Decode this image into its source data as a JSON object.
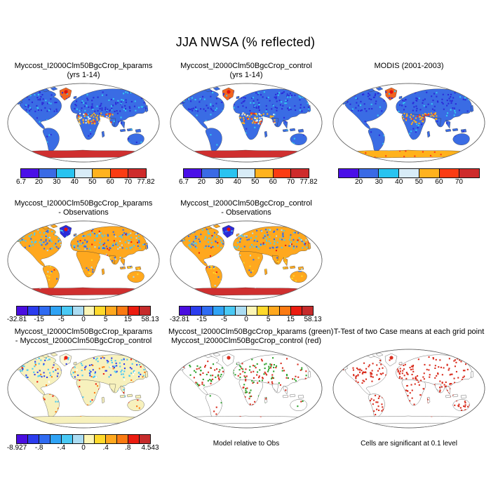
{
  "title": "JJA NWSA (% reflected)",
  "palettes": {
    "albedo7": [
      "#4a0fe8",
      "#3a6ae5",
      "#29c3f0",
      "#d8ecf7",
      "#ffb21e",
      "#fb3c13",
      "#ce2b2b"
    ],
    "diff12": [
      "#4a0ee0",
      "#2b3cee",
      "#2f6bf2",
      "#2fa3f5",
      "#49c9f5",
      "#abdcf2",
      "#fcf5b5",
      "#ffd92b",
      "#ffa81e",
      "#fb7a12",
      "#ec1c10",
      "#c62b2b"
    ]
  },
  "map_styles": {
    "absolute": {
      "land": "#3a6ce4",
      "antarctica": "#cf2f2f",
      "greenland": "#f2641e",
      "greenland_dot": "#e01010"
    },
    "modis": {
      "land": "#3a6ce4",
      "antarctica": "#ffb21c",
      "greenland": "#f2641e",
      "greenland_dot": "#e01010"
    },
    "diff_obs": {
      "land": "#ffa81e",
      "antarctica": "#cf2f2f",
      "greenland": "#2b2bd8",
      "greenland_dot": "#e01010"
    },
    "diff_case": {
      "land": "#f7f1bd",
      "antarctica": "#f7f1bd",
      "greenland": "#fbf7dc",
      "greenland_dot": "#ec1c10"
    },
    "overlay": {
      "land": "#ffffff",
      "antarctica": "#ffffff",
      "greenland": "#ffffff",
      "greenland_dot": "#d92f20"
    },
    "ttest": {
      "land": "#ffffff",
      "antarctica": "#ffffff",
      "greenland": "#ffffff",
      "greenland_dot": "#d92f20"
    }
  },
  "panels": [
    {
      "title1": "Myccost_I2000Clm50BgcCrop_kparams",
      "title2": "(yrs 1-14)",
      "map_style": "absolute",
      "colorbar": {
        "palette": "albedo7",
        "segments": 7,
        "labels": [
          {
            "text": "6.7",
            "at": 0
          },
          {
            "text": "20",
            "at": 1
          },
          {
            "text": "30",
            "at": 2
          },
          {
            "text": "40",
            "at": 3
          },
          {
            "text": "50",
            "at": 4
          },
          {
            "text": "60",
            "at": 5
          },
          {
            "text": "70",
            "at": 6
          },
          {
            "text": "77.82",
            "at": 7
          }
        ]
      }
    },
    {
      "title1": "Myccost_I2000Clm50BgcCrop_control",
      "title2": "(yrs 1-14)",
      "map_style": "absolute",
      "colorbar": {
        "palette": "albedo7",
        "segments": 7,
        "labels": [
          {
            "text": "6.7",
            "at": 0
          },
          {
            "text": "20",
            "at": 1
          },
          {
            "text": "30",
            "at": 2
          },
          {
            "text": "40",
            "at": 3
          },
          {
            "text": "50",
            "at": 4
          },
          {
            "text": "60",
            "at": 5
          },
          {
            "text": "70",
            "at": 6
          },
          {
            "text": "77.82",
            "at": 7
          }
        ]
      }
    },
    {
      "title1": "MODIS (2001-2003)",
      "title2": "",
      "map_style": "modis",
      "colorbar": {
        "palette": "albedo7",
        "segments": 7,
        "labels": [
          {
            "text": "20",
            "at": 1
          },
          {
            "text": "30",
            "at": 2
          },
          {
            "text": "40",
            "at": 3
          },
          {
            "text": "50",
            "at": 4
          },
          {
            "text": "60",
            "at": 5
          },
          {
            "text": "70",
            "at": 6
          }
        ]
      }
    },
    {
      "title1": "Myccost_I2000Clm50BgcCrop_kparams",
      "title2": "- Observations",
      "map_style": "diff_obs",
      "colorbar": {
        "palette": "diff12",
        "segments": 12,
        "labels": [
          {
            "text": "-32.81",
            "at": 0
          },
          {
            "text": "-15",
            "at": 2
          },
          {
            "text": "-5",
            "at": 4
          },
          {
            "text": "0",
            "at": 6
          },
          {
            "text": "5",
            "at": 8
          },
          {
            "text": "15",
            "at": 10
          },
          {
            "text": "58.13",
            "at": 12
          }
        ]
      }
    },
    {
      "title1": "Myccost_I2000Clm50BgcCrop_control",
      "title2": "- Observations",
      "map_style": "diff_obs",
      "colorbar": {
        "palette": "diff12",
        "segments": 12,
        "labels": [
          {
            "text": "-32.81",
            "at": 0
          },
          {
            "text": "-15",
            "at": 2
          },
          {
            "text": "-5",
            "at": 4
          },
          {
            "text": "0",
            "at": 6
          },
          {
            "text": "5",
            "at": 8
          },
          {
            "text": "15",
            "at": 10
          },
          {
            "text": "58.13",
            "at": 12
          }
        ]
      }
    },
    {
      "title1": "Myccost_I2000Clm50BgcCrop_kparams",
      "title2": "- Myccost_I2000Clm50BgcCrop_control",
      "map_style": "diff_case",
      "colorbar": {
        "palette": "diff12",
        "segments": 12,
        "labels": [
          {
            "text": "-8.927",
            "at": 0
          },
          {
            "text": "-.8",
            "at": 2
          },
          {
            "text": "-.4",
            "at": 4
          },
          {
            "text": "0",
            "at": 6
          },
          {
            "text": ".4",
            "at": 8
          },
          {
            "text": ".8",
            "at": 10
          },
          {
            "text": "4.543",
            "at": 12
          }
        ]
      }
    },
    {
      "title1": "Myccost_I2000Clm50BgcCrop_kparams (green)",
      "title2": "Myccost_I2000Clm50BgcCrop_control (red)",
      "map_style": "overlay",
      "caption": "Model relative to Obs"
    },
    {
      "title1": "T-Test of two Case means at each grid point",
      "title2": "",
      "map_style": "ttest",
      "caption": "Cells are significant at 0.1 level"
    }
  ],
  "chart_data": [
    {
      "type": "choropleth",
      "projection": "robinson",
      "region": "global",
      "title": "Myccost_I2000Clm50BgcCrop_kparams (yrs 1-14)",
      "variable": "JJA NWSA (% reflected)",
      "colorbar_ticks": [
        6.7,
        20,
        30,
        40,
        50,
        60,
        70,
        77.82
      ],
      "range": [
        6.7,
        77.82
      ],
      "palette": "albedo7"
    },
    {
      "type": "choropleth",
      "projection": "robinson",
      "region": "global",
      "title": "Myccost_I2000Clm50BgcCrop_control (yrs 1-14)",
      "variable": "JJA NWSA (% reflected)",
      "colorbar_ticks": [
        6.7,
        20,
        30,
        40,
        50,
        60,
        70,
        77.82
      ],
      "range": [
        6.7,
        77.82
      ],
      "palette": "albedo7"
    },
    {
      "type": "choropleth",
      "projection": "robinson",
      "region": "global",
      "title": "MODIS (2001-2003)",
      "variable": "JJA NWSA (% reflected)",
      "colorbar_ticks": [
        20,
        30,
        40,
        50,
        60,
        70
      ],
      "palette": "albedo7"
    },
    {
      "type": "difference-map",
      "projection": "robinson",
      "title": "Myccost_I2000Clm50BgcCrop_kparams - Observations",
      "colorbar_ticks": [
        -32.81,
        -15,
        -5,
        0,
        5,
        15,
        58.13
      ],
      "range": [
        -32.81,
        58.13
      ],
      "palette": "diff12"
    },
    {
      "type": "difference-map",
      "projection": "robinson",
      "title": "Myccost_I2000Clm50BgcCrop_control - Observations",
      "colorbar_ticks": [
        -32.81,
        -15,
        -5,
        0,
        5,
        15,
        58.13
      ],
      "range": [
        -32.81,
        58.13
      ],
      "palette": "diff12"
    },
    {
      "type": "difference-map",
      "projection": "robinson",
      "title": "Myccost_I2000Clm50BgcCrop_kparams - Myccost_I2000Clm50BgcCrop_control",
      "colorbar_ticks": [
        -8.927,
        -0.8,
        -0.4,
        0,
        0.4,
        0.8,
        4.543
      ],
      "range": [
        -8.927,
        4.543
      ],
      "palette": "diff12"
    },
    {
      "type": "overlay-map",
      "projection": "robinson",
      "title": "Myccost_I2000Clm50BgcCrop_kparams (green), Myccost_I2000Clm50BgcCrop_control (red)",
      "legend": "Model relative to Obs",
      "series_colors": {
        "kparams": "#2fa32f",
        "control": "#d92f20"
      }
    },
    {
      "type": "significance-map",
      "projection": "robinson",
      "title": "T-Test of two Case means at each grid point",
      "note": "Cells are significant at 0.1 level",
      "significant_color": "#d92f20"
    }
  ]
}
